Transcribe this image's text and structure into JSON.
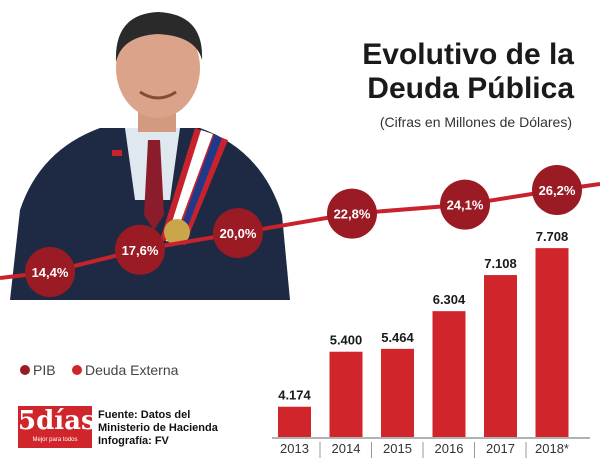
{
  "header": {
    "title_line1": "Evolutivo de la",
    "title_line2": "Deuda Pública",
    "subtitle": "(Cifras en Millones de Dólares)"
  },
  "legend": {
    "pib": "PIB",
    "deuda": "Deuda Externa"
  },
  "brand": {
    "logo": "5días",
    "tagline": "Mejor para todos"
  },
  "footer": {
    "source_line1": "Fuente: Datos del",
    "source_line2": "Ministerio de Hacienda",
    "credit": "Infografía: FV"
  },
  "colors": {
    "bar": "#d0262b",
    "pib_bubble": "#9b1b24",
    "pib_line": "#c8232c",
    "text_dark": "#1a1a1a"
  },
  "chart_data": {
    "type": "bar",
    "title": "Evolutivo de la Deuda Pública",
    "subtitle": "(Cifras en Millones de Dólares)",
    "categories": [
      "2013",
      "2014",
      "2015",
      "2016",
      "2017",
      "2018*"
    ],
    "series": [
      {
        "name": "Deuda Externa",
        "values": [
          4174,
          5400,
          5464,
          6304,
          7108,
          7708
        ],
        "labels": [
          "4.174",
          "5.400",
          "5.464",
          "6.304",
          "7.108",
          "7.708"
        ]
      },
      {
        "name": "PIB",
        "kind": "line",
        "values": [
          14.4,
          17.6,
          20.0,
          22.8,
          24.1,
          26.2
        ],
        "labels": [
          "14,4%",
          "17,6%",
          "20,0%",
          "22,8%",
          "24,1%",
          "26,2%"
        ]
      }
    ],
    "ylim": [
      3500,
      7800
    ],
    "xlabel": "",
    "ylabel": ""
  }
}
